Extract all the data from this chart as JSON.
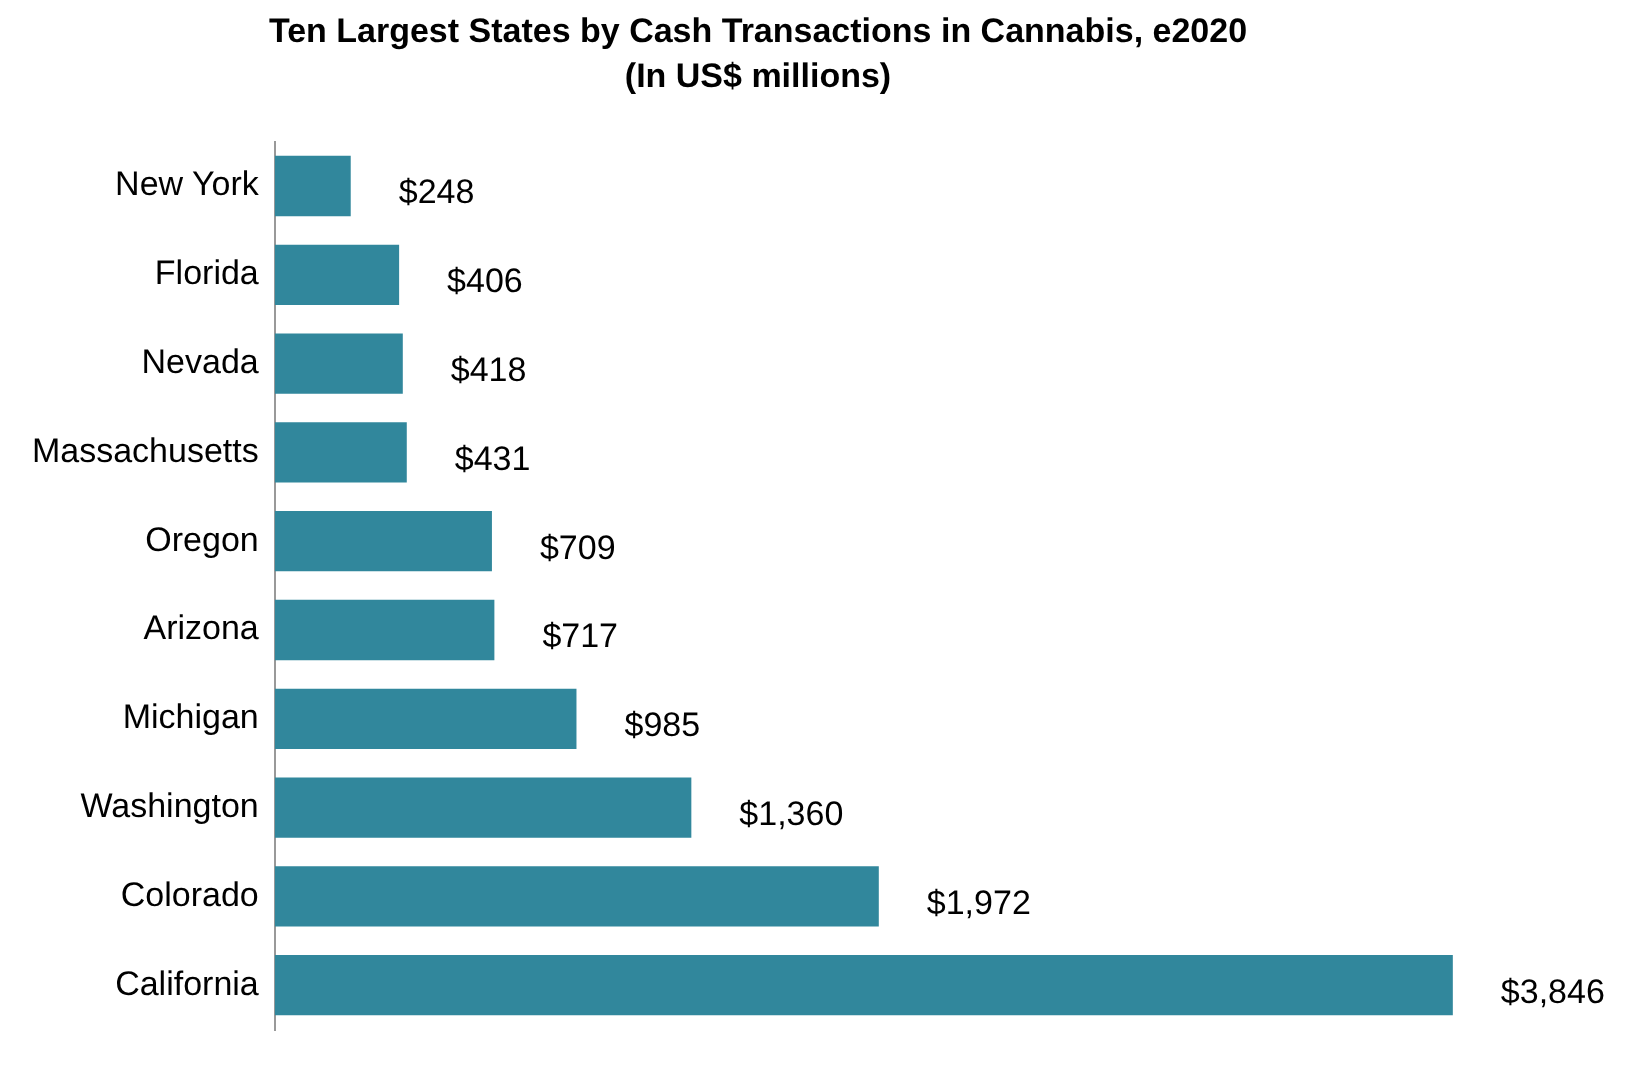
{
  "chart_data": {
    "type": "bar",
    "orientation": "horizontal",
    "title": "Ten Largest States by Cash Transactions in Cannabis, e2020",
    "subtitle": "(In US$ millions)",
    "categories": [
      "New York",
      "Florida",
      "Nevada",
      "Massachusetts",
      "Oregon",
      "Arizona",
      "Michigan",
      "Washington",
      "Colorado",
      "California"
    ],
    "values": [
      248,
      406,
      418,
      431,
      709,
      717,
      985,
      1360,
      1972,
      3846
    ],
    "value_labels": [
      "$248",
      "$406",
      "$418",
      "$431",
      "$709",
      "$717",
      "$985",
      "$1,360",
      "$1,972",
      "$3,846"
    ],
    "color": "#31879c"
  }
}
